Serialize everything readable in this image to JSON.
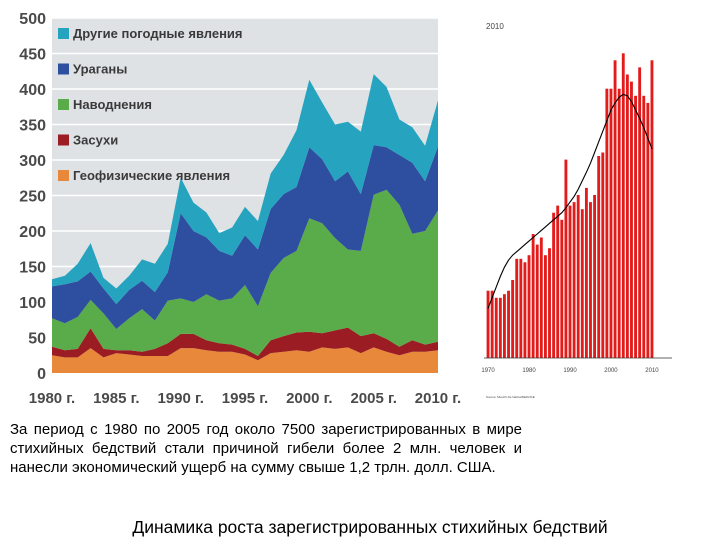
{
  "chart_data": [
    {
      "type": "area",
      "stacked": true,
      "x": [
        1980,
        1981,
        1982,
        1983,
        1984,
        1985,
        1986,
        1987,
        1988,
        1989,
        1990,
        1991,
        1992,
        1993,
        1994,
        1995,
        1996,
        1997,
        1998,
        1999,
        2000,
        2001,
        2002,
        2003,
        2004,
        2005,
        2006,
        2007,
        2008,
        2009,
        2010
      ],
      "xticklabels": [
        "1980 г.",
        "1985 г.",
        "1990 г.",
        "1995 г.",
        "2000 г.",
        "2005 г.",
        "2010 г."
      ],
      "xticks": [
        1980,
        1985,
        1990,
        1995,
        2000,
        2005,
        2010
      ],
      "ylim": [
        0,
        500
      ],
      "yticks": [
        0,
        50,
        100,
        150,
        200,
        250,
        300,
        350,
        400,
        450,
        500
      ],
      "grid": true,
      "legend_position": "top-left",
      "series": [
        {
          "name": "Геофизические явления",
          "color": "#e8883a",
          "values": [
            25,
            22,
            22,
            35,
            22,
            28,
            26,
            24,
            24,
            24,
            35,
            35,
            32,
            30,
            30,
            26,
            18,
            28,
            30,
            32,
            30,
            36,
            34,
            36,
            28,
            36,
            30,
            25,
            30,
            30,
            32
          ]
        },
        {
          "name": "Засухи",
          "color": "#9b1c22",
          "values": [
            12,
            10,
            12,
            28,
            12,
            4,
            6,
            6,
            10,
            18,
            20,
            20,
            14,
            12,
            10,
            8,
            6,
            18,
            22,
            25,
            28,
            20,
            26,
            28,
            24,
            20,
            18,
            12,
            16,
            10,
            12
          ]
        },
        {
          "name": "Наводнения",
          "color": "#5aab4a",
          "values": [
            40,
            38,
            45,
            40,
            50,
            30,
            45,
            60,
            40,
            60,
            50,
            45,
            65,
            60,
            65,
            90,
            70,
            95,
            110,
            115,
            160,
            155,
            130,
            110,
            120,
            195,
            210,
            200,
            150,
            160,
            185
          ]
        },
        {
          "name": "Ураганы",
          "color": "#2e4ea0",
          "values": [
            45,
            55,
            50,
            40,
            35,
            35,
            40,
            40,
            40,
            40,
            120,
            100,
            80,
            70,
            60,
            70,
            80,
            90,
            90,
            90,
            100,
            90,
            80,
            110,
            80,
            70,
            60,
            70,
            100,
            70,
            90
          ]
        },
        {
          "name": "Другие погодные явления",
          "color": "#26a4bf",
          "values": [
            10,
            12,
            25,
            40,
            15,
            22,
            20,
            30,
            40,
            40,
            50,
            40,
            35,
            25,
            40,
            40,
            40,
            50,
            55,
            80,
            95,
            80,
            80,
            70,
            88,
            100,
            85,
            50,
            50,
            50,
            65
          ]
        }
      ]
    },
    {
      "type": "bar",
      "title": "2010",
      "color": "#e21b1b",
      "x": [
        1970,
        1971,
        1972,
        1973,
        1974,
        1975,
        1976,
        1977,
        1978,
        1979,
        1980,
        1981,
        1982,
        1983,
        1984,
        1985,
        1986,
        1987,
        1988,
        1989,
        1990,
        1991,
        1992,
        1993,
        1994,
        1995,
        1996,
        1997,
        1998,
        1999,
        2000,
        2001,
        2002,
        2003,
        2004,
        2005,
        2006,
        2007,
        2008,
        2009,
        2010
      ],
      "values": [
        95,
        95,
        85,
        85,
        90,
        95,
        110,
        140,
        140,
        135,
        145,
        175,
        160,
        170,
        145,
        155,
        205,
        215,
        195,
        280,
        215,
        220,
        230,
        210,
        240,
        220,
        230,
        285,
        290,
        380,
        380,
        420,
        380,
        430,
        400,
        390,
        370,
        410,
        370,
        360,
        420
      ],
      "trend": [
        70,
        85,
        100,
        115,
        128,
        138,
        145,
        150,
        155,
        160,
        165,
        170,
        175,
        180,
        185,
        190,
        195,
        200,
        205,
        212,
        220,
        228,
        238,
        250,
        262,
        275,
        290,
        305,
        320,
        335,
        350,
        360,
        368,
        372,
        370,
        362,
        350,
        338,
        325,
        310,
        295
      ],
      "xticklabels": [
        "1970",
        "1980",
        "1990",
        "2000",
        "2010"
      ],
      "xticks": [
        1970,
        1980,
        1990,
        2000,
        2010
      ],
      "ylim": [
        0,
        460
      ]
    }
  ],
  "caption": "За период с 1980 по 2005 год около 7500 зарегистрированных в мире стихийных бедствий стали причиной гибели более 2 млн. человек и нанесли экономический ущерб на сумму свыше 1,2 трлн. долл. США.",
  "footer": "Динамика роста зарегистрированных стихийных бедствий",
  "source_note": "Source: Munich Re NatCatSERVICE"
}
